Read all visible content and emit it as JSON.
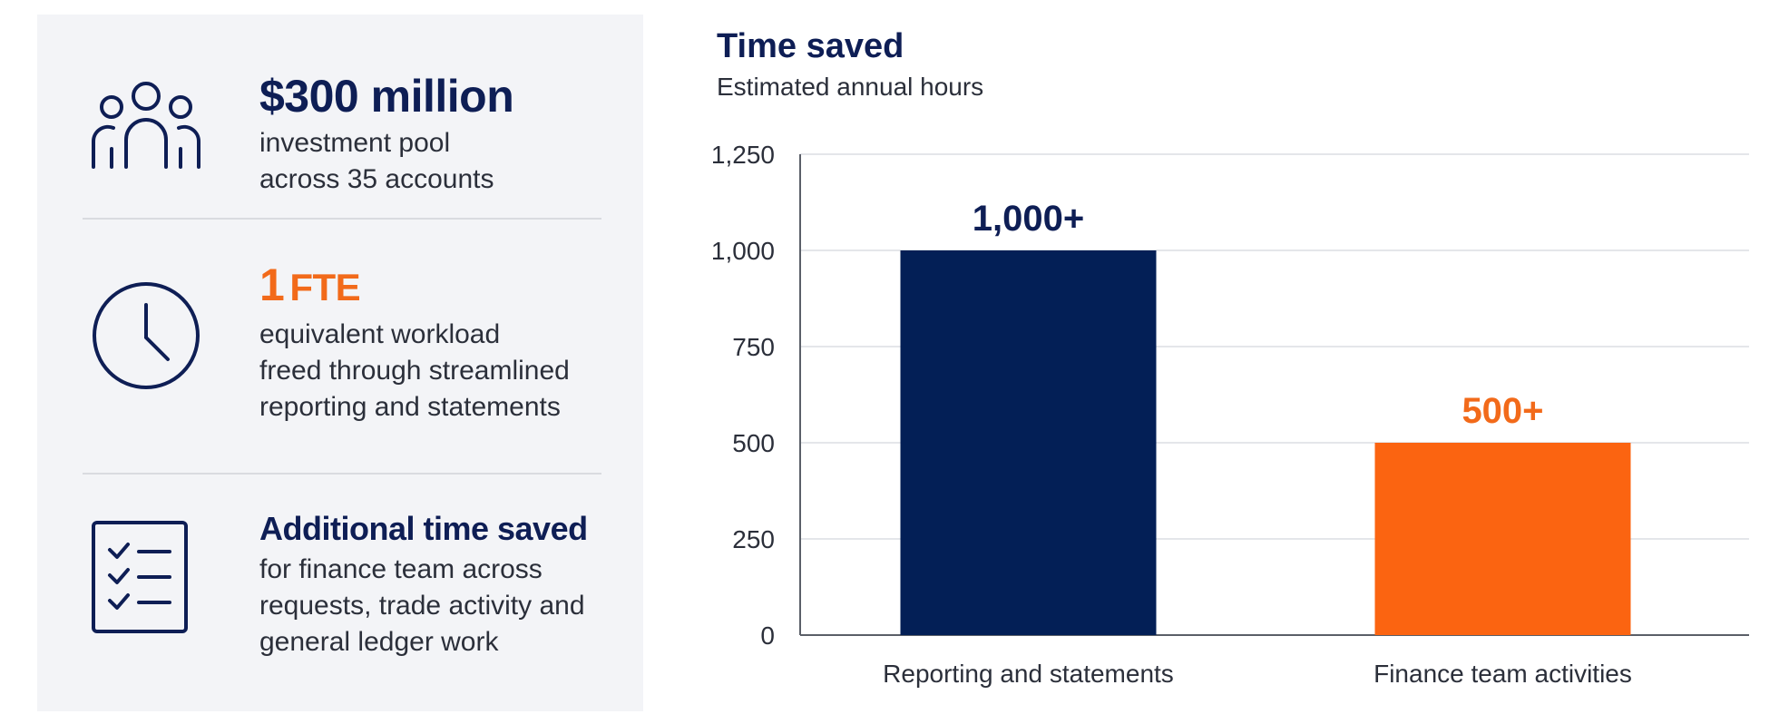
{
  "stats": [
    {
      "headline": "$300 million",
      "lines": [
        "investment pool",
        "across 35 accounts"
      ],
      "icon": "people-icon"
    },
    {
      "headline_number": "1",
      "headline_unit": "FTE",
      "lines": [
        "equivalent workload",
        "freed through streamlined",
        "reporting and statements"
      ],
      "icon": "clock-icon"
    },
    {
      "headline": "Additional time saved",
      "lines": [
        "for finance team across",
        "requests, trade activity and",
        "general ledger work"
      ],
      "icon": "checklist-icon"
    }
  ],
  "colors": {
    "navy": "#0e1e55",
    "orange": "#f26a1a",
    "bar_navy": "#031f56",
    "bar_orange": "#fb6411",
    "panel": "#f3f4f7"
  },
  "chart_data": {
    "type": "bar",
    "title": "Time saved",
    "subtitle": "Estimated annual hours",
    "categories": [
      "Reporting and statements",
      "Finance team activities"
    ],
    "values": [
      1000,
      500
    ],
    "data_labels": [
      "1,000+",
      "500+"
    ],
    "yticks": [
      0,
      250,
      500,
      750,
      1000,
      1250
    ],
    "ytick_labels": [
      "0",
      "250",
      "500",
      "750",
      "1,000",
      "1,250"
    ],
    "ylim": [
      0,
      1250
    ],
    "grid": true
  }
}
